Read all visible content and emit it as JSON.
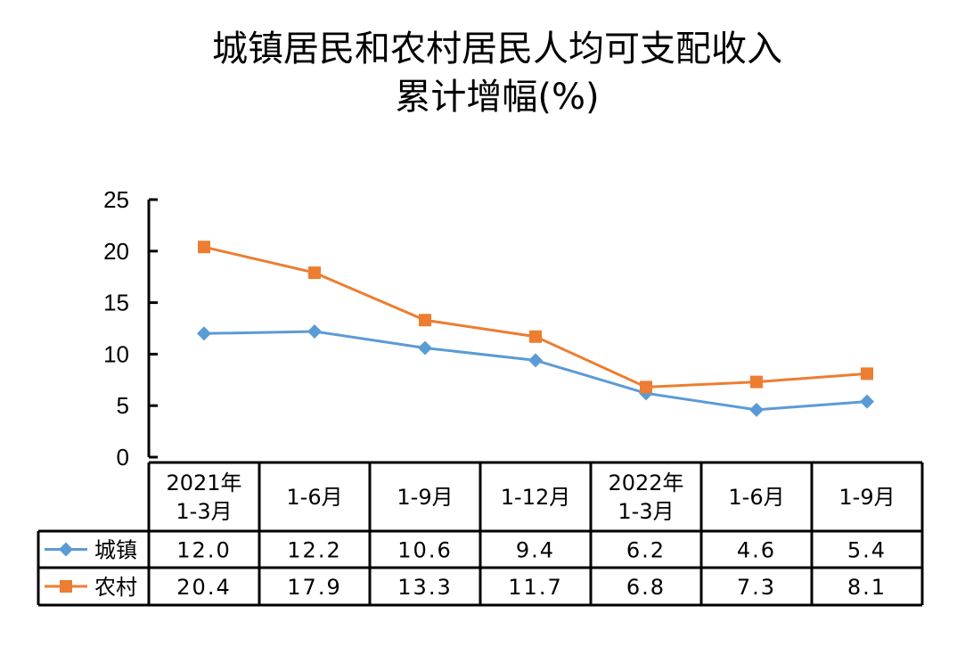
{
  "chart_data": {
    "type": "line",
    "title_line1": "城镇居民和农村居民人均可支配收入",
    "title_line2": "累计增幅(%)",
    "categories": [
      [
        "2021年",
        "1-3月"
      ],
      [
        "1-6月"
      ],
      [
        "1-9月"
      ],
      [
        "1-12月"
      ],
      [
        "2022年",
        "1-3月"
      ],
      [
        "1-6月"
      ],
      [
        "1-9月"
      ]
    ],
    "ylim": [
      0,
      25
    ],
    "yticks": [
      "0",
      "5",
      "10",
      "15",
      "20",
      "25"
    ],
    "series": [
      {
        "name": "城镇",
        "color": "#5B9BD5",
        "marker": "diamond",
        "values": [
          12.0,
          12.2,
          10.6,
          9.4,
          6.2,
          4.6,
          5.4
        ],
        "labels": [
          "12.0",
          "12.2",
          "10.6",
          "9.4",
          "6.2",
          "4.6",
          "5.4"
        ]
      },
      {
        "name": "农村",
        "color": "#ED7D31",
        "marker": "square",
        "values": [
          20.4,
          17.9,
          13.3,
          11.7,
          6.8,
          7.3,
          8.1
        ],
        "labels": [
          "20.4",
          "17.9",
          "13.3",
          "11.7",
          "6.8",
          "7.3",
          "8.1"
        ]
      }
    ]
  }
}
